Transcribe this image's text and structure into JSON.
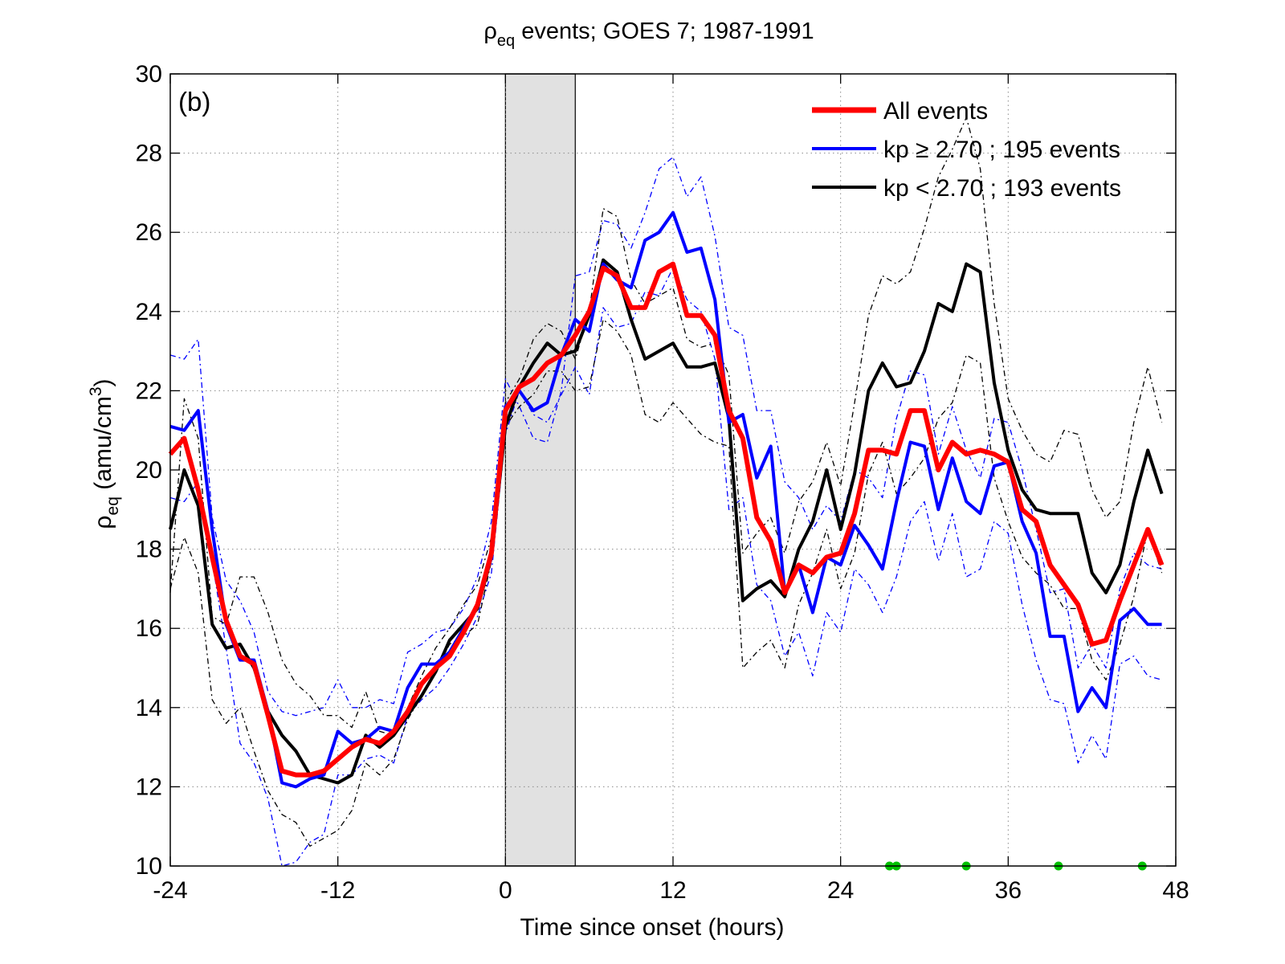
{
  "chart_data": {
    "type": "line",
    "title": {
      "rho": "ρ",
      "sub": "eq",
      "rest": " events; GOES 7; 1987-1991"
    },
    "panel_label": "(b)",
    "xlabel": "Time since onset (hours)",
    "ylabel": {
      "rho": "ρ",
      "sub": "eq",
      "unit_open": " (amu/cm",
      "sup": "3",
      "unit_close": ")"
    },
    "xlim": [
      -24,
      48
    ],
    "ylim": [
      10,
      30
    ],
    "xticks": [
      -24,
      -12,
      0,
      12,
      24,
      36,
      48
    ],
    "yticks": [
      10,
      12,
      14,
      16,
      18,
      20,
      22,
      24,
      26,
      28,
      30
    ],
    "grid": true,
    "legend_position": "top-right",
    "shaded_interval": [
      0,
      5
    ],
    "x": [
      -24,
      -23,
      -22,
      -21,
      -20,
      -19,
      -18,
      -17,
      -16,
      -15,
      -14,
      -13,
      -12,
      -11,
      -10,
      -9,
      -8,
      -7,
      -6,
      -5,
      -4,
      -3,
      -2,
      -1,
      0,
      1,
      2,
      3,
      4,
      5,
      6,
      7,
      8,
      9,
      10,
      11,
      12,
      13,
      14,
      15,
      16,
      17,
      18,
      19,
      20,
      21,
      22,
      23,
      24,
      25,
      26,
      27,
      28,
      29,
      30,
      31,
      32,
      33,
      34,
      35,
      36,
      37,
      38,
      39,
      40,
      41,
      42,
      43,
      44,
      45,
      46,
      47
    ],
    "series": [
      {
        "name": "All events",
        "color": "#ff0000",
        "width": 6,
        "dash": "none",
        "values": [
          20.4,
          20.8,
          19.5,
          17.8,
          16.2,
          15.3,
          15.1,
          13.8,
          12.4,
          12.3,
          12.3,
          12.4,
          12.7,
          13.0,
          13.2,
          13.1,
          13.4,
          13.9,
          14.6,
          15.0,
          15.3,
          15.9,
          16.6,
          17.9,
          21.5,
          22.1,
          22.3,
          22.7,
          22.9,
          23.4,
          24.0,
          25.1,
          24.9,
          24.1,
          24.1,
          25.0,
          25.2,
          23.9,
          23.9,
          23.4,
          21.5,
          20.8,
          18.8,
          18.2,
          16.9,
          17.6,
          17.4,
          17.8,
          17.9,
          18.9,
          20.5,
          20.5,
          20.4,
          21.5,
          21.5,
          20.0,
          20.7,
          20.4,
          20.5,
          20.4,
          20.2,
          19.0,
          18.7,
          17.6,
          17.1,
          16.6,
          15.6,
          15.7,
          16.7,
          17.6,
          18.5,
          17.6
        ]
      },
      {
        "name": "kp ≥ 2.70 ; 195 events",
        "color": "#0000ff",
        "width": 4,
        "dash": "none",
        "values": [
          21.1,
          21.0,
          21.5,
          18.5,
          16.1,
          15.2,
          15.2,
          13.9,
          12.1,
          12.0,
          12.2,
          12.3,
          13.4,
          13.1,
          13.2,
          13.5,
          13.4,
          14.5,
          15.1,
          15.1,
          15.4,
          16.0,
          16.6,
          17.8,
          21.6,
          22.0,
          21.5,
          21.7,
          22.9,
          23.8,
          23.5,
          25.2,
          24.8,
          24.6,
          25.8,
          26.0,
          26.5,
          25.5,
          25.6,
          24.3,
          21.2,
          21.4,
          19.8,
          20.6,
          16.9,
          17.6,
          16.4,
          17.8,
          17.6,
          18.6,
          18.1,
          17.5,
          19.2,
          20.7,
          20.6,
          19.0,
          20.3,
          19.2,
          18.9,
          20.1,
          20.2,
          18.7,
          17.9,
          15.8,
          15.8,
          13.9,
          14.5,
          14.0,
          16.2,
          16.5,
          16.1,
          16.1
        ]
      },
      {
        "name": "kp < 2.70 ; 193 events",
        "color": "#000000",
        "width": 4,
        "dash": "none",
        "values": [
          18.5,
          20.0,
          19.1,
          16.1,
          15.5,
          15.6,
          15.0,
          13.9,
          13.3,
          12.9,
          12.3,
          12.2,
          12.1,
          12.3,
          13.3,
          13.0,
          13.3,
          13.8,
          14.3,
          14.9,
          15.7,
          16.1,
          16.5,
          17.8,
          21.1,
          22.1,
          22.7,
          23.2,
          22.9,
          23.0,
          23.9,
          25.3,
          25.0,
          23.8,
          22.8,
          23.0,
          23.2,
          22.6,
          22.6,
          22.7,
          21.3,
          16.7,
          17.0,
          17.2,
          16.8,
          18.0,
          18.7,
          20.0,
          18.5,
          19.9,
          22.0,
          22.7,
          22.1,
          22.2,
          23.0,
          24.2,
          24.0,
          25.2,
          25.0,
          22.2,
          20.5,
          19.5,
          19.0,
          18.9,
          18.9,
          18.9,
          17.4,
          16.9,
          17.6,
          19.2,
          20.5,
          19.4
        ]
      },
      {
        "name": "",
        "color": "#0000ff",
        "width": 1.3,
        "dash": "7,4,2,4",
        "values": [
          22.9,
          22.8,
          23.3,
          18.8,
          17.2,
          16.7,
          15.9,
          14.4,
          13.9,
          13.8,
          13.9,
          14.0,
          14.7,
          14.0,
          14.0,
          14.2,
          14.1,
          15.4,
          15.6,
          15.9,
          16.0,
          16.5,
          17.3,
          18.7,
          22.3,
          21.6,
          20.8,
          20.7,
          22.0,
          24.9,
          25.0,
          26.3,
          26.2,
          25.6,
          26.5,
          27.6,
          27.9,
          26.9,
          27.4,
          25.9,
          23.6,
          23.4,
          21.5,
          21.5,
          19.7,
          19.3,
          18.5,
          19.1,
          18.7,
          20.0,
          19.8,
          19.3,
          21.3,
          22.5,
          22.4,
          20.4,
          21.6,
          20.5,
          19.8,
          21.3,
          21.2,
          20.0,
          18.5,
          16.9,
          17.0,
          15.0,
          15.6,
          15.0,
          17.0,
          17.9,
          17.6,
          17.5
        ]
      },
      {
        "name": "",
        "color": "#0000ff",
        "width": 1.3,
        "dash": "7,4,2,4",
        "values": [
          19.3,
          19.2,
          19.7,
          17.7,
          15.5,
          13.1,
          12.6,
          11.7,
          10.0,
          10.1,
          10.6,
          10.8,
          12.3,
          12.3,
          12.7,
          12.8,
          12.6,
          13.8,
          14.2,
          14.5,
          15.0,
          15.6,
          16.3,
          17.4,
          20.9,
          22.0,
          21.4,
          21.2,
          21.9,
          22.6,
          21.9,
          24.1,
          23.6,
          23.7,
          24.5,
          24.4,
          25.1,
          24.3,
          24.0,
          22.8,
          19.0,
          19.3,
          17.1,
          16.7,
          15.3,
          15.9,
          14.8,
          16.4,
          15.9,
          17.5,
          17.1,
          16.4,
          17.3,
          18.7,
          19.2,
          17.7,
          18.9,
          17.3,
          17.5,
          18.7,
          18.4,
          16.6,
          15.2,
          14.2,
          14.1,
          12.6,
          13.3,
          12.7,
          15.1,
          15.3,
          14.8,
          14.7
        ]
      },
      {
        "name": "",
        "color": "#000000",
        "width": 1.3,
        "dash": "7,4,2,4",
        "values": [
          16.9,
          21.8,
          20.8,
          16.3,
          16.1,
          17.3,
          17.3,
          16.4,
          15.2,
          14.6,
          14.3,
          13.8,
          13.8,
          13.5,
          14.4,
          13.4,
          13.3,
          14.0,
          14.8,
          15.5,
          16.0,
          16.6,
          17.1,
          18.3,
          21.7,
          22.3,
          23.3,
          23.7,
          23.5,
          22.8,
          24.0,
          26.6,
          26.4,
          24.8,
          24.2,
          24.4,
          24.6,
          23.3,
          23.1,
          23.2,
          22.4,
          17.9,
          18.4,
          18.8,
          17.9,
          19.2,
          19.7,
          20.7,
          19.6,
          21.7,
          23.9,
          24.9,
          24.7,
          25.0,
          26.1,
          27.4,
          28.1,
          28.9,
          27.6,
          24.2,
          21.8,
          21.0,
          20.4,
          20.2,
          21.0,
          20.9,
          19.5,
          18.8,
          19.2,
          21.2,
          22.6,
          21.2
        ]
      },
      {
        "name": "",
        "color": "#000000",
        "width": 1.3,
        "dash": "7,4,2,4",
        "values": [
          17.0,
          18.3,
          17.4,
          14.2,
          13.6,
          14.0,
          12.9,
          11.9,
          11.3,
          11.1,
          10.5,
          10.7,
          10.9,
          11.4,
          12.6,
          12.3,
          12.7,
          13.7,
          14.3,
          14.9,
          15.6,
          15.8,
          16.1,
          17.7,
          21.1,
          21.6,
          21.9,
          22.5,
          22.5,
          22.0,
          22.1,
          23.8,
          23.5,
          22.9,
          21.4,
          21.2,
          21.7,
          21.3,
          20.9,
          20.7,
          20.6,
          15.0,
          15.4,
          15.7,
          15.0,
          16.6,
          17.4,
          18.5,
          17.0,
          17.9,
          19.9,
          20.7,
          19.4,
          19.8,
          20.3,
          21.3,
          21.7,
          22.9,
          22.7,
          19.8,
          18.7,
          17.8,
          17.4,
          17.1,
          16.5,
          16.5,
          15.2,
          14.7,
          15.6,
          16.8,
          18.5,
          17.4
        ]
      }
    ],
    "markers": {
      "color": "#00c000",
      "y": 10,
      "x": [
        27.5,
        28,
        33,
        39.6,
        45.6
      ]
    }
  }
}
